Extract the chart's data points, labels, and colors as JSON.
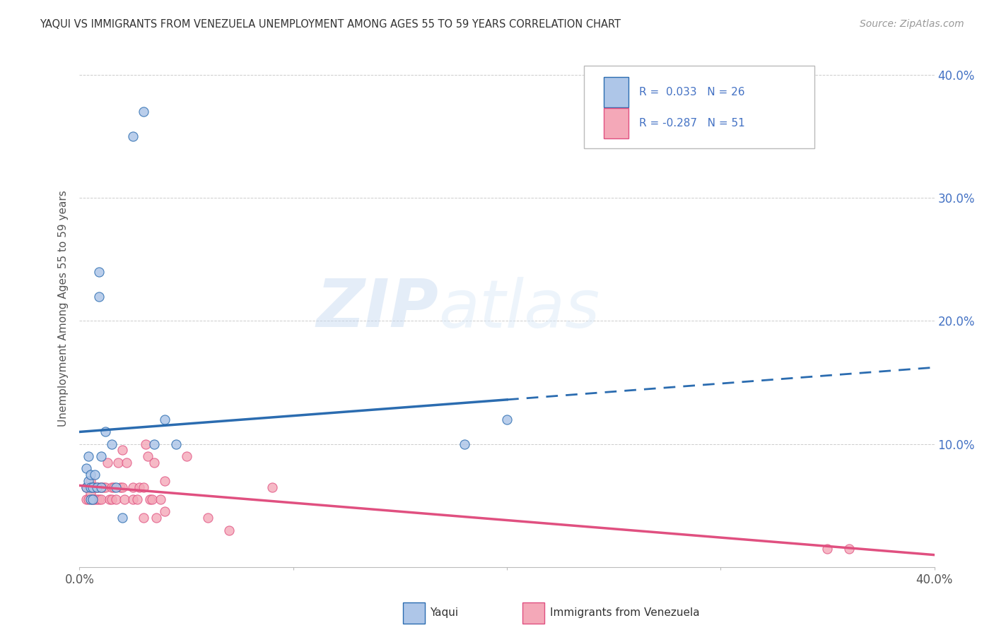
{
  "title": "YAQUI VS IMMIGRANTS FROM VENEZUELA UNEMPLOYMENT AMONG AGES 55 TO 59 YEARS CORRELATION CHART",
  "source": "Source: ZipAtlas.com",
  "ylabel": "Unemployment Among Ages 55 to 59 years",
  "xlim": [
    0.0,
    0.4
  ],
  "ylim": [
    0.0,
    0.42
  ],
  "yticks": [
    0.0,
    0.1,
    0.2,
    0.3,
    0.4
  ],
  "ytick_labels": [
    "",
    "10.0%",
    "20.0%",
    "30.0%",
    "40.0%"
  ],
  "xticks": [
    0.0,
    0.1,
    0.2,
    0.3,
    0.4
  ],
  "xtick_labels": [
    "0.0%",
    "",
    "",
    "",
    "40.0%"
  ],
  "color_yaqui": "#aec6e8",
  "color_venez": "#f4a8b8",
  "line_color_yaqui": "#2b6cb0",
  "line_color_venez": "#e05080",
  "watermark_zip": "ZIP",
  "watermark_atlas": "atlas",
  "background_color": "#ffffff",
  "grid_color": "#cccccc",
  "yaqui_x": [
    0.003,
    0.003,
    0.004,
    0.004,
    0.005,
    0.005,
    0.005,
    0.006,
    0.006,
    0.007,
    0.008,
    0.009,
    0.009,
    0.01,
    0.01,
    0.012,
    0.015,
    0.017,
    0.02,
    0.025,
    0.03,
    0.035,
    0.04,
    0.045,
    0.18,
    0.2
  ],
  "yaqui_y": [
    0.065,
    0.08,
    0.07,
    0.09,
    0.065,
    0.075,
    0.055,
    0.065,
    0.055,
    0.075,
    0.065,
    0.22,
    0.24,
    0.09,
    0.065,
    0.11,
    0.1,
    0.065,
    0.04,
    0.35,
    0.37,
    0.1,
    0.12,
    0.1,
    0.1,
    0.12
  ],
  "venez_x": [
    0.003,
    0.003,
    0.004,
    0.004,
    0.005,
    0.005,
    0.006,
    0.006,
    0.007,
    0.007,
    0.008,
    0.008,
    0.009,
    0.009,
    0.01,
    0.01,
    0.011,
    0.012,
    0.013,
    0.014,
    0.015,
    0.015,
    0.016,
    0.017,
    0.018,
    0.019,
    0.02,
    0.02,
    0.021,
    0.022,
    0.025,
    0.025,
    0.027,
    0.028,
    0.03,
    0.03,
    0.031,
    0.032,
    0.033,
    0.034,
    0.035,
    0.036,
    0.038,
    0.04,
    0.04,
    0.05,
    0.06,
    0.07,
    0.09,
    0.35,
    0.36
  ],
  "venez_y": [
    0.065,
    0.055,
    0.065,
    0.055,
    0.07,
    0.06,
    0.065,
    0.055,
    0.065,
    0.055,
    0.055,
    0.065,
    0.055,
    0.065,
    0.055,
    0.065,
    0.065,
    0.065,
    0.085,
    0.055,
    0.055,
    0.065,
    0.065,
    0.055,
    0.085,
    0.065,
    0.095,
    0.065,
    0.055,
    0.085,
    0.065,
    0.055,
    0.055,
    0.065,
    0.065,
    0.04,
    0.1,
    0.09,
    0.055,
    0.055,
    0.085,
    0.04,
    0.055,
    0.07,
    0.045,
    0.09,
    0.04,
    0.03,
    0.065,
    0.015,
    0.015
  ]
}
